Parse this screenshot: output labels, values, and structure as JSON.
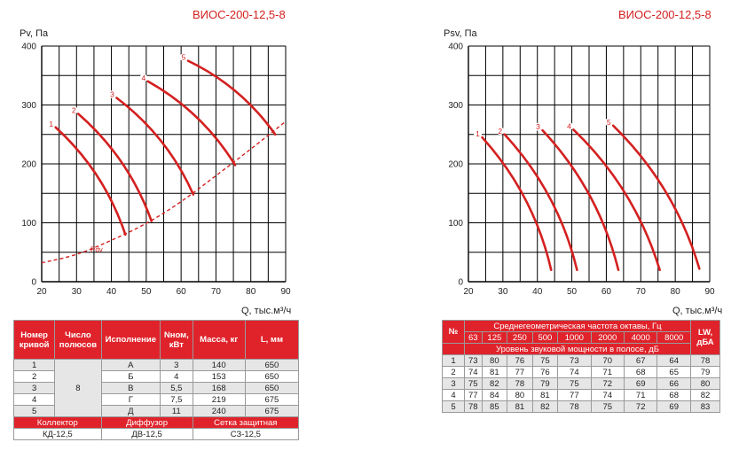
{
  "chart_data": [
    {
      "type": "line",
      "title": "ВИОС-200-12,5-8",
      "ylabel": "Pv, Па",
      "xlabel": "Q, тыс.м³/ч",
      "xlim": [
        20,
        90
      ],
      "ylim": [
        0,
        400
      ],
      "x_ticks": [
        "20",
        "30",
        "40",
        "50",
        "60",
        "70",
        "80",
        "90"
      ],
      "y_ticks": [
        "0",
        "100",
        "200",
        "300",
        "400"
      ],
      "grid": true,
      "series": [
        {
          "name": "1",
          "x": [
            24,
            44
          ],
          "y": [
            262,
            80
          ]
        },
        {
          "name": "2",
          "x": [
            30.5,
            51.5
          ],
          "y": [
            285,
            103
          ]
        },
        {
          "name": "3",
          "x": [
            41.5,
            63.5
          ],
          "y": [
            312,
            148
          ]
        },
        {
          "name": "4",
          "x": [
            50.5,
            75.5
          ],
          "y": [
            340,
            198
          ]
        },
        {
          "name": "5",
          "x": [
            62,
            87
          ],
          "y": [
            375,
            250
          ]
        }
      ],
      "pdv": {
        "name": "Pdv",
        "x": [
          20,
          30,
          40,
          50,
          60,
          70,
          80,
          90
        ],
        "y": [
          32,
          45,
          70,
          98,
          135,
          180,
          225,
          272
        ]
      }
    },
    {
      "type": "line",
      "title": "ВИОС-200-12,5-8",
      "ylabel": "Psv, Па",
      "xlabel": "Q, тыс.м³/ч",
      "xlim": [
        20,
        90
      ],
      "ylim": [
        0,
        400
      ],
      "x_ticks": [
        "20",
        "30",
        "40",
        "50",
        "60",
        "70",
        "80",
        "90"
      ],
      "y_ticks": [
        "0",
        "100",
        "200",
        "300",
        "400"
      ],
      "grid": true,
      "series": [
        {
          "name": "1",
          "x": [
            24,
            44
          ],
          "y": [
            245,
            20
          ]
        },
        {
          "name": "2",
          "x": [
            30.5,
            51.5
          ],
          "y": [
            250,
            20
          ]
        },
        {
          "name": "3",
          "x": [
            41.5,
            63.5
          ],
          "y": [
            257,
            20
          ]
        },
        {
          "name": "4",
          "x": [
            50.5,
            75.5
          ],
          "y": [
            258,
            20
          ]
        },
        {
          "name": "5",
          "x": [
            62,
            87
          ],
          "y": [
            265,
            22
          ]
        }
      ]
    }
  ],
  "spec_table": {
    "headers": [
      "Номер кривой",
      "Число полюсов",
      "Исполнение",
      "Nном, кВт",
      "Масса, кг",
      "L, мм"
    ],
    "poles": "8",
    "rows": [
      [
        "1",
        "А",
        "3",
        "140",
        "650"
      ],
      [
        "2",
        "Б",
        "4",
        "153",
        "650"
      ],
      [
        "3",
        "В",
        "5,5",
        "168",
        "650"
      ],
      [
        "4",
        "Г",
        "7,5",
        "219",
        "675"
      ],
      [
        "5",
        "Д",
        "11",
        "240",
        "675"
      ]
    ],
    "footer_headers": [
      "Коллектор",
      "Диффузор",
      "Сетка защитная"
    ],
    "footer_values": [
      "КД-12,5",
      "ДВ-12,5",
      "СЗ-12,5"
    ]
  },
  "sound_table": {
    "col_no": "№",
    "freq_header": "Среднегеометрическая частота октавы, Гц",
    "frequencies": [
      "63",
      "125",
      "250",
      "500",
      "1000",
      "2000",
      "4000",
      "8000"
    ],
    "level_header": "Уровень звуковой мощности в полосе, дБ",
    "lw_header": "LW, дБА",
    "rows": [
      [
        "1",
        "73",
        "80",
        "76",
        "75",
        "73",
        "70",
        "67",
        "64",
        "78"
      ],
      [
        "2",
        "74",
        "81",
        "77",
        "76",
        "74",
        "71",
        "68",
        "65",
        "79"
      ],
      [
        "3",
        "75",
        "82",
        "78",
        "79",
        "75",
        "72",
        "69",
        "66",
        "80"
      ],
      [
        "4",
        "77",
        "84",
        "80",
        "81",
        "77",
        "74",
        "71",
        "68",
        "82"
      ],
      [
        "5",
        "78",
        "85",
        "81",
        "82",
        "78",
        "75",
        "72",
        "69",
        "83"
      ]
    ]
  },
  "colors": {
    "curve": "#d42020",
    "header_bg": "#e0232b",
    "grid": "#000000"
  }
}
